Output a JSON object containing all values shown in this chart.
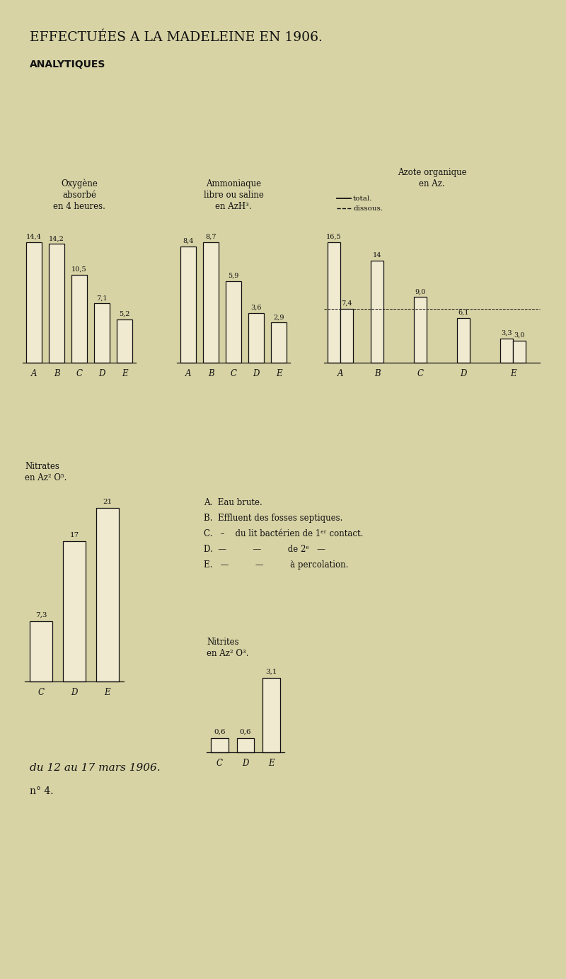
{
  "bg_color": "#d8d3a5",
  "page_title": "EFFECTUÉES A LA MADELEINE EN 1906.",
  "section_title": "ANALYTIQUES",
  "footer_date": "du 12 au 17 mars 1906.",
  "footer_num": "n° 4.",
  "chart1_title_line1": "Oxygène",
  "chart1_title_line2": "absorbé",
  "chart1_title_line3": "en 4 heures.",
  "chart1_categories": [
    "A",
    "B",
    "C",
    "D",
    "E"
  ],
  "chart1_values": [
    14.4,
    14.2,
    10.5,
    7.1,
    5.2
  ],
  "chart1_labels": [
    "14,4",
    "14,2",
    "10,5",
    "7,1",
    "5,2"
  ],
  "chart2_title_line1": "Ammoniaque",
  "chart2_title_line2": "libre ou saline",
  "chart2_title_line3": "en AzH³.",
  "chart2_categories": [
    "A",
    "B",
    "C",
    "D",
    "E"
  ],
  "chart2_values": [
    8.4,
    8.7,
    5.9,
    3.6,
    2.9
  ],
  "chart2_labels": [
    "8,4",
    "8,7",
    "5,9",
    "3,6",
    "2,9"
  ],
  "chart3_title_line1": "Azote organique",
  "chart3_title_line2": "en Az.",
  "chart3_legend_total": "total.",
  "chart3_legend_dissous": "dissous.",
  "chart3_categories": [
    "A",
    "B",
    "C",
    "D",
    "E"
  ],
  "chart3_values_total": [
    16.5,
    14.0,
    9.0,
    6.1,
    3.3
  ],
  "chart3_labels_total": [
    "16,5",
    "14",
    "9,0",
    "6,1",
    "3,3"
  ],
  "chart3_values_dissous": [
    7.4,
    0,
    0,
    0,
    3.0
  ],
  "chart3_labels_dissous": [
    "7,4",
    "",
    "",
    "",
    "3,0"
  ],
  "chart3_dashed_value": 7.4,
  "chart4_title_line1": "Nitrates",
  "chart4_title_line2": "en Az² O⁵.",
  "chart4_categories": [
    "C",
    "D",
    "E"
  ],
  "chart4_values": [
    7.3,
    17.0,
    21.0
  ],
  "chart4_labels": [
    "7,3",
    "17",
    "21"
  ],
  "chart5_title_line1": "Nitrites",
  "chart5_title_line2": "en Az² O³.",
  "chart5_categories": [
    "C",
    "D",
    "E"
  ],
  "chart5_values": [
    0.6,
    0.6,
    3.1
  ],
  "chart5_labels": [
    "0,6",
    "0,6",
    "3,1"
  ],
  "legend_A": "A.  Eau brute.",
  "legend_B": "B.  Effluent des fosses septiques.",
  "legend_C": "C.   –    du lit bactérien de 1ᵉʳ contact.",
  "legend_D": "D.  —          —          de 2ᵉ   —",
  "legend_E": "E.   —          —          à percolation.",
  "bar_color": "#f0ead0",
  "bar_edge_color": "#111111",
  "text_color": "#111111"
}
